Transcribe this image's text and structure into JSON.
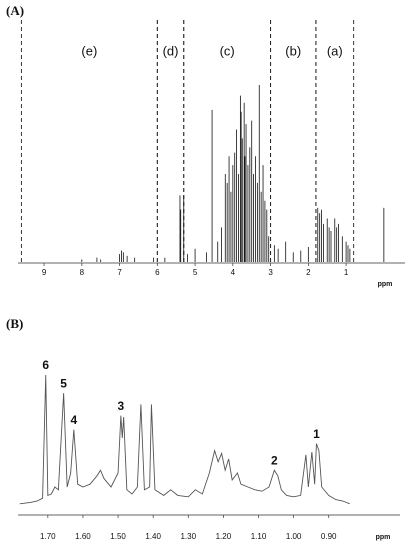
{
  "chart_data": [
    {
      "type": "stick",
      "panel_label": "(A)",
      "x_label": "ppm",
      "xlim": [
        9.69,
        -0.56
      ],
      "xticks": [
        9,
        8,
        7,
        6,
        5,
        4,
        3,
        2,
        1
      ],
      "ylim": [
        0,
        100
      ],
      "color": "#111111",
      "regions": [
        {
          "label": "(e)",
          "range": [
            9.6,
            6.0
          ]
        },
        {
          "label": "(d)",
          "range": [
            6.0,
            5.3
          ]
        },
        {
          "label": "(c)",
          "range": [
            5.3,
            3.0
          ]
        },
        {
          "label": "(b)",
          "range": [
            3.0,
            1.8
          ]
        },
        {
          "label": "(a)",
          "range": [
            1.8,
            0.8
          ]
        }
      ],
      "x": [
        8.0,
        7.6,
        7.5,
        7.0,
        6.95,
        6.9,
        6.8,
        6.6,
        6.1,
        5.8,
        5.4,
        5.38,
        5.3,
        5.2,
        5.0,
        4.7,
        4.55,
        4.4,
        4.3,
        4.2,
        4.15,
        4.1,
        4.05,
        4.0,
        3.95,
        3.9,
        3.85,
        3.8,
        3.78,
        3.75,
        3.7,
        3.68,
        3.65,
        3.6,
        3.55,
        3.5,
        3.45,
        3.4,
        3.35,
        3.3,
        3.25,
        3.2,
        3.15,
        3.1,
        3.05,
        2.9,
        2.8,
        2.6,
        2.4,
        2.2,
        2.0,
        1.75,
        1.7,
        1.65,
        1.6,
        1.5,
        1.45,
        1.4,
        1.3,
        1.25,
        1.2,
        1.1,
        1.0,
        0.95,
        0.9,
        0.0
      ],
      "values": [
        2,
        3,
        2,
        5,
        7,
        6,
        4,
        3,
        3,
        3,
        38,
        30,
        38,
        5,
        8,
        6,
        86,
        12,
        20,
        50,
        45,
        60,
        40,
        55,
        62,
        75,
        50,
        94,
        85,
        70,
        90,
        60,
        78,
        55,
        65,
        80,
        50,
        60,
        45,
        100,
        40,
        55,
        35,
        30,
        15,
        10,
        8,
        12,
        6,
        7,
        9,
        31,
        28,
        30,
        22,
        25,
        20,
        18,
        25,
        20,
        22,
        15,
        12,
        10,
        8,
        31
      ]
    },
    {
      "type": "line",
      "panel_label": "(B)",
      "x_label": "ppm",
      "xlim": [
        1.785,
        0.697
      ],
      "xticks": [
        {
          "value": 1.7,
          "label": "1.70"
        },
        {
          "value": 1.6,
          "label": "1.60"
        },
        {
          "value": 1.5,
          "label": "1.50"
        },
        {
          "value": 1.4,
          "label": "1.40"
        },
        {
          "value": 1.3,
          "label": "1.30"
        },
        {
          "value": 1.2,
          "label": "1.20"
        },
        {
          "value": 1.1,
          "label": "1.10"
        },
        {
          "value": 1.0,
          "label": "1.00"
        },
        {
          "value": 0.9,
          "label": "0.90"
        }
      ],
      "ylim": [
        0,
        100
      ],
      "color": "#555555",
      "x": [
        1.78,
        1.75,
        1.73,
        1.715,
        1.706,
        1.7,
        1.69,
        1.68,
        1.67,
        1.655,
        1.645,
        1.635,
        1.626,
        1.615,
        1.6,
        1.58,
        1.56,
        1.55,
        1.54,
        1.52,
        1.5,
        1.492,
        1.488,
        1.484,
        1.475,
        1.46,
        1.445,
        1.435,
        1.425,
        1.41,
        1.405,
        1.395,
        1.37,
        1.35,
        1.33,
        1.3,
        1.28,
        1.26,
        1.24,
        1.225,
        1.215,
        1.205,
        1.195,
        1.185,
        1.175,
        1.16,
        1.15,
        1.13,
        1.11,
        1.09,
        1.07,
        1.055,
        1.045,
        1.035,
        1.02,
        1.0,
        0.98,
        0.965,
        0.958,
        0.948,
        0.94,
        0.935,
        0.928,
        0.92,
        0.9,
        0.88,
        0.86,
        0.84
      ],
      "values": [
        8,
        9,
        10,
        12,
        100,
        14,
        15,
        20,
        18,
        87,
        20,
        30,
        61,
        22,
        20,
        22,
        28,
        32,
        26,
        20,
        30,
        71,
        55,
        70,
        18,
        15,
        20,
        79,
        18,
        20,
        79,
        18,
        14,
        18,
        14,
        13,
        18,
        15,
        30,
        46,
        38,
        44,
        32,
        40,
        25,
        30,
        22,
        20,
        18,
        17,
        20,
        32,
        28,
        18,
        14,
        13,
        14,
        43,
        20,
        45,
        22,
        51,
        46,
        20,
        14,
        11,
        10,
        8
      ],
      "annotations": [
        {
          "text": "6",
          "x": 1.706,
          "y": 100
        },
        {
          "text": "5",
          "x": 1.655,
          "y": 87
        },
        {
          "text": "4",
          "x": 1.626,
          "y": 61
        },
        {
          "text": "3",
          "x": 1.492,
          "y": 71
        },
        {
          "text": "2",
          "x": 1.055,
          "y": 32
        },
        {
          "text": "1",
          "x": 0.935,
          "y": 51
        }
      ]
    }
  ]
}
